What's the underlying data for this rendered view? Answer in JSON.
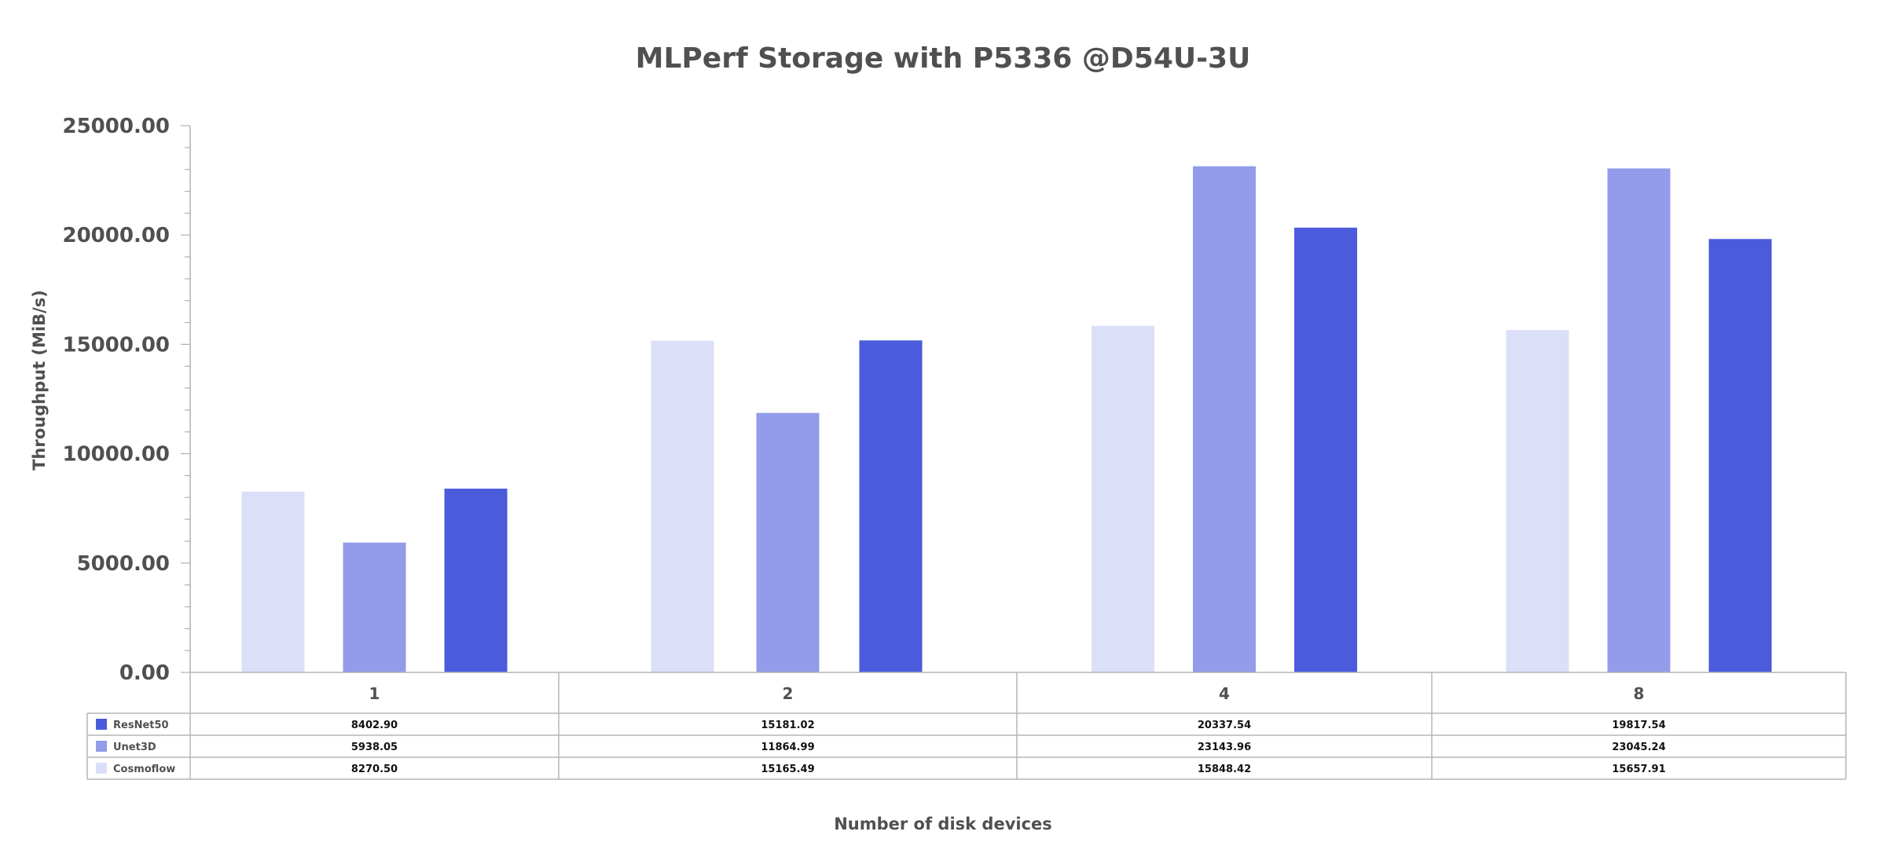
{
  "chart_data": {
    "type": "bar",
    "title": "MLPerf Storage with P5336 @D54U-3U",
    "xlabel": "Number of disk devices",
    "ylabel": "Throughput (MiB/s)",
    "ylim": [
      0,
      25000
    ],
    "yticks": [
      "0.00",
      "5000.00",
      "10000.00",
      "15000.00",
      "20000.00",
      "25000.00"
    ],
    "categories": [
      "1",
      "2",
      "4",
      "8"
    ],
    "series": [
      {
        "name": "Cosmoflow",
        "color": "#dcdff8",
        "values": [
          8270.5,
          15165.49,
          15848.42,
          15657.91
        ],
        "labels": [
          "8270.50",
          "15165.49",
          "15848.42",
          "15657.91"
        ]
      },
      {
        "name": "Unet3D",
        "color": "#929ceb",
        "values": [
          5938.05,
          11864.99,
          23143.96,
          23045.24
        ],
        "labels": [
          "5938.05",
          "11864.99",
          "23143.96",
          "23045.24"
        ]
      },
      {
        "name": "ResNet50",
        "color": "#4a5bdc",
        "values": [
          8402.9,
          15181.02,
          20337.54,
          19817.54
        ],
        "labels": [
          "8402.90",
          "15181.02",
          "20337.54",
          "19817.54"
        ]
      }
    ],
    "table_row_order": [
      "ResNet50",
      "Unet3D",
      "Cosmoflow"
    ],
    "grid": false,
    "legend": "data-table-left"
  }
}
